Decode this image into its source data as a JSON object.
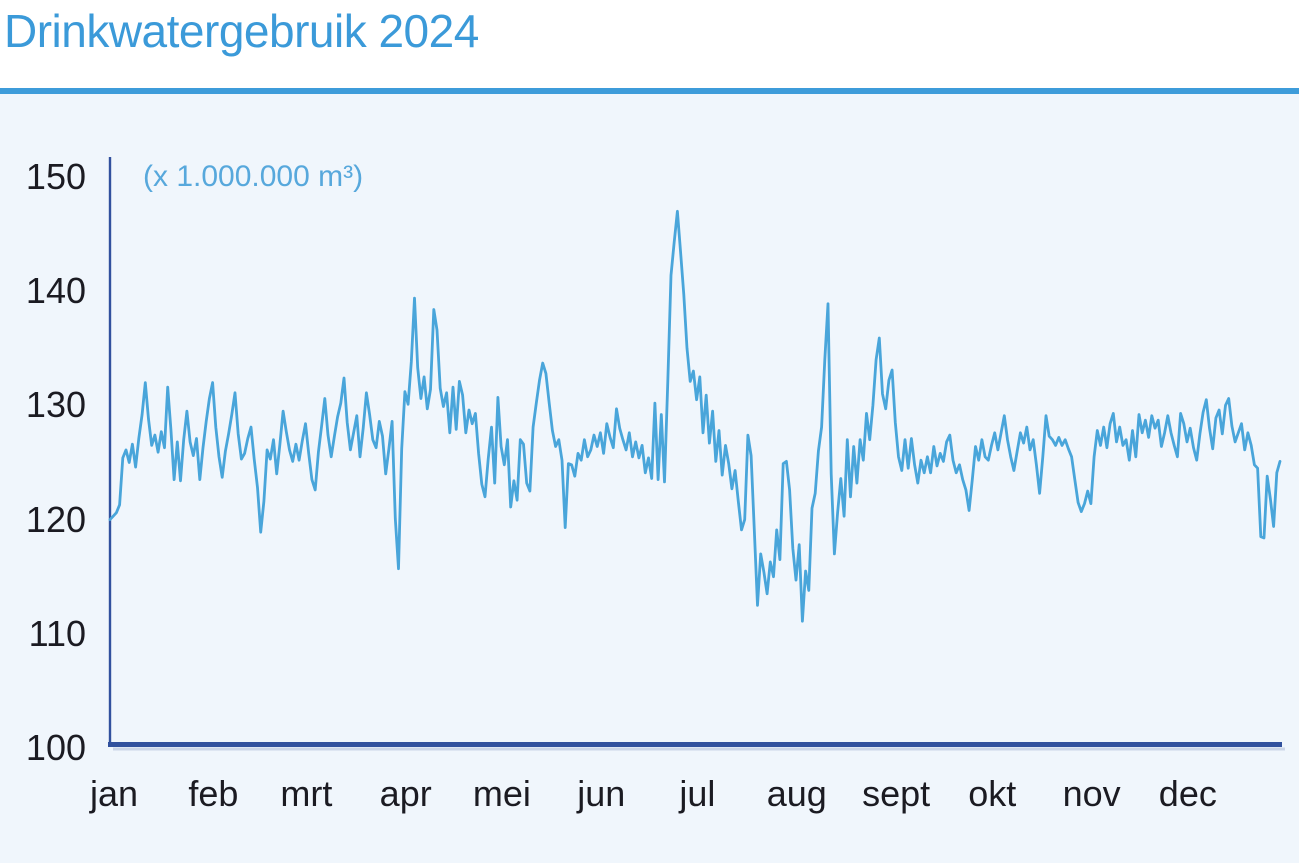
{
  "header": {
    "title": "Drinkwatergebruik 2024"
  },
  "colors": {
    "title": "#3B9AD9",
    "divider": "#3E9CDA",
    "panel_background": "#F0F6FC",
    "line": "#49A5DA",
    "axis": "#31519E",
    "axis_shadow": "#AEBBD8",
    "tick_text": "#1B1B22",
    "unit_text": "#57A8DC"
  },
  "chart_data": {
    "type": "line",
    "title": "Drinkwatergebruik 2024",
    "unit_label": "(x 1.000.000 m³)",
    "xlabel": "",
    "ylabel": "(x 1.000.000 m³)",
    "x_tick_labels": [
      "jan",
      "feb",
      "mrt",
      "apr",
      "mei",
      "jun",
      "jul",
      "aug",
      "sept",
      "okt",
      "nov",
      "dec"
    ],
    "month_lengths": [
      31,
      29,
      31,
      30,
      31,
      30,
      31,
      31,
      30,
      31,
      30,
      31
    ],
    "y_ticks": [
      150,
      140,
      130,
      120,
      110,
      100
    ],
    "ylim": [
      100,
      150
    ],
    "grid": "off",
    "legend": "none",
    "x_description": "daily values, 1 jan to 31 dec 2024, 366 days",
    "series": [
      {
        "values": [
          120.0,
          120.3,
          120.6,
          121.3,
          125.4,
          126.1,
          125.0,
          126.6,
          124.6,
          127.1,
          129.2,
          132.0,
          128.8,
          126.5,
          127.4,
          125.9,
          127.7,
          126.3,
          131.6,
          127.9,
          123.5,
          126.8,
          123.4,
          127.0,
          129.5,
          126.8,
          125.6,
          127.1,
          123.5,
          126.3,
          128.6,
          130.6,
          132.0,
          128.1,
          125.5,
          123.7,
          126.0,
          127.5,
          129.2,
          131.1,
          127.5,
          125.3,
          125.8,
          127.1,
          128.1,
          125.3,
          122.8,
          118.9,
          121.6,
          126.1,
          125.3,
          127.0,
          124.0,
          126.6,
          129.5,
          127.7,
          126.1,
          125.1,
          126.6,
          125.2,
          126.9,
          128.4,
          125.8,
          123.5,
          122.6,
          125.9,
          128.2,
          130.6,
          127.4,
          125.5,
          127.3,
          129.0,
          130.2,
          132.4,
          128.5,
          126.1,
          127.6,
          129.1,
          125.5,
          128.0,
          131.1,
          129.2,
          127.0,
          126.3,
          128.6,
          127.3,
          124.0,
          126.2,
          128.6,
          120.1,
          115.7,
          126.2,
          131.2,
          130.1,
          133.8,
          139.4,
          133.3,
          130.6,
          132.5,
          129.7,
          131.4,
          138.4,
          136.6,
          131.5,
          129.9,
          131.1,
          127.6,
          131.6,
          127.9,
          132.1,
          130.9,
          127.6,
          129.6,
          128.4,
          129.3,
          125.8,
          123.1,
          122.0,
          125.3,
          128.1,
          123.2,
          130.7,
          126.4,
          124.8,
          127.0,
          121.1,
          123.4,
          121.7,
          127.0,
          126.6,
          123.2,
          122.5,
          128.1,
          130.2,
          132.2,
          133.7,
          132.8,
          130.2,
          127.8,
          126.4,
          127.0,
          125.2,
          119.3,
          124.9,
          124.8,
          123.8,
          125.8,
          125.2,
          127.0,
          125.5,
          126.1,
          127.4,
          126.4,
          127.6,
          125.8,
          128.4,
          127.2,
          126.3,
          129.7,
          128.0,
          127.0,
          126.1,
          127.6,
          125.5,
          126.8,
          125.4,
          126.5,
          124.1,
          125.4,
          123.6,
          130.2,
          123.5,
          129.2,
          123.3,
          132.1,
          141.4,
          144.3,
          147.0,
          143.4,
          139.7,
          135.0,
          132.1,
          133.0,
          130.5,
          132.5,
          127.6,
          130.9,
          126.7,
          129.5,
          125.1,
          127.8,
          123.9,
          126.5,
          124.9,
          122.7,
          124.3,
          121.6,
          119.1,
          120.0,
          127.4,
          125.6,
          119.1,
          112.5,
          117.0,
          115.4,
          113.5,
          116.3,
          115.0,
          119.1,
          116.5,
          124.9,
          125.1,
          122.6,
          117.5,
          114.7,
          117.8,
          111.1,
          115.5,
          113.8,
          121.0,
          122.3,
          126.0,
          128.1,
          134.0,
          138.9,
          124.0,
          117.0,
          120.6,
          123.6,
          120.3,
          127.0,
          122.0,
          126.4,
          123.2,
          127.0,
          125.2,
          129.3,
          127.0,
          130.0,
          134.0,
          135.9,
          131.0,
          129.7,
          132.2,
          133.1,
          128.5,
          125.5,
          124.3,
          127.0,
          124.5,
          127.1,
          124.8,
          123.2,
          125.2,
          124.1,
          125.5,
          124.1,
          126.4,
          124.7,
          125.8,
          125.1,
          126.8,
          127.4,
          125.2,
          124.1,
          124.8,
          123.5,
          122.6,
          120.8,
          123.5,
          126.4,
          125.2,
          127.0,
          125.5,
          125.2,
          126.5,
          127.6,
          126.1,
          127.6,
          129.1,
          127.0,
          125.5,
          124.3,
          126.0,
          127.6,
          126.7,
          128.1,
          126.1,
          127.0,
          124.8,
          122.3,
          125.5,
          129.1,
          127.3,
          127.0,
          126.5,
          127.2,
          126.5,
          127.0,
          126.2,
          125.5,
          123.5,
          121.5,
          120.7,
          121.4,
          122.5,
          121.4,
          125.5,
          127.8,
          126.5,
          128.1,
          126.3,
          128.4,
          129.3,
          126.8,
          128.1,
          126.5,
          127.0,
          125.2,
          127.8,
          125.5,
          129.2,
          127.6,
          128.7,
          127.2,
          129.1,
          128.0,
          128.7,
          126.4,
          127.6,
          129.1,
          127.6,
          126.5,
          125.5,
          129.3,
          128.4,
          126.8,
          128.0,
          126.3,
          125.2,
          127.5,
          129.4,
          130.5,
          128.0,
          126.2,
          128.9,
          129.6,
          127.5,
          130.0,
          130.6,
          128.2,
          126.8,
          127.6,
          128.4,
          126.1,
          127.6,
          126.5,
          124.8,
          124.5,
          118.5,
          118.4,
          123.8,
          121.8,
          119.4,
          124.1,
          125.1
        ]
      }
    ]
  },
  "layout": {
    "plot_left_x": 110,
    "plot_right_x": 1280,
    "y_of_100": 748,
    "y_of_150": 177
  }
}
